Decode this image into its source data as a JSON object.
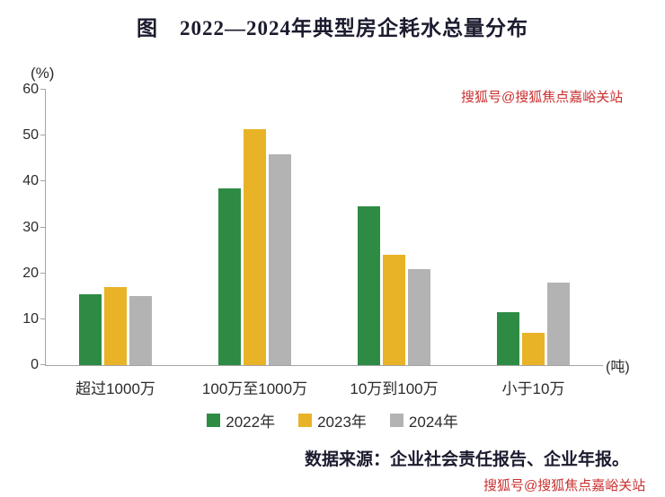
{
  "title": "图　2022—2024年典型房企耗水总量分布",
  "chart_data": {
    "type": "bar",
    "categories": [
      "超过1000万",
      "100万至1000万",
      "10万到100万",
      "小于10万"
    ],
    "series": [
      {
        "name": "2022年",
        "color": "#2e8b44",
        "values": [
          15.5,
          38.5,
          34.5,
          11.5
        ]
      },
      {
        "name": "2023年",
        "color": "#e9b327",
        "values": [
          17,
          51.5,
          24,
          7
        ]
      },
      {
        "name": "2024年",
        "color": "#b3b3b3",
        "values": [
          15,
          46,
          21,
          18
        ]
      }
    ],
    "ylabel": "(%)",
    "xunit": "(吨)",
    "ylim": [
      0,
      60
    ],
    "yticks": [
      0,
      10,
      20,
      30,
      40,
      50,
      60
    ],
    "legend_position": "bottom",
    "grid": false
  },
  "source": "数据来源：企业社会责任报告、企业年报。",
  "watermark": {
    "top": "搜狐号@搜狐焦点嘉峪关站",
    "bottom": "搜狐号@搜狐焦点嘉峪关站",
    "color": "#cb2f2f"
  }
}
